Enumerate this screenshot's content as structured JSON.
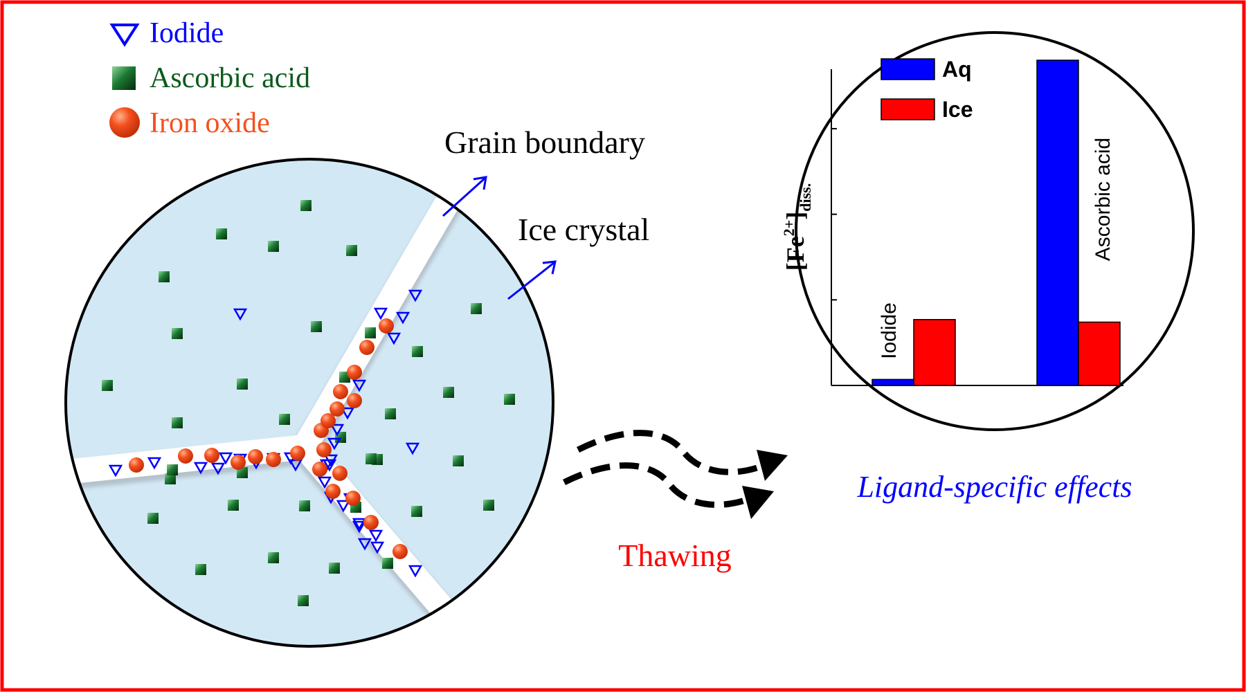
{
  "legend": {
    "iodide_label": "Iodide",
    "ascorbic_label": "Ascorbic acid",
    "iron_label": "Iron oxide"
  },
  "labels": {
    "grain_boundary": "Grain boundary",
    "ice_crystal": "Ice crystal",
    "thawing": "Thawing",
    "ligand_effects": "Ligand-specific effects"
  },
  "colors": {
    "frame": "#ff0000",
    "iodide": "#0000ff",
    "ascorbic": "#0b5a1b",
    "iron": "#f4501e",
    "ice": "#d3e8f5",
    "aq_bar": "#0000ff",
    "ice_bar": "#ff0000"
  },
  "chart_data": {
    "type": "bar",
    "categories": [
      "Iodide",
      "Ascorbic acid"
    ],
    "series": [
      {
        "name": "Aq",
        "values": [
          0.07,
          3.8
        ]
      },
      {
        "name": "Ice",
        "values": [
          0.77,
          0.74
        ]
      }
    ],
    "ylabel_main": "[Fe",
    "ylabel_sup": "2+",
    "ylabel_close": "]",
    "ylabel_sub": "diss.",
    "ylim": [
      0,
      3.8
    ],
    "legend_position": "top-left"
  }
}
